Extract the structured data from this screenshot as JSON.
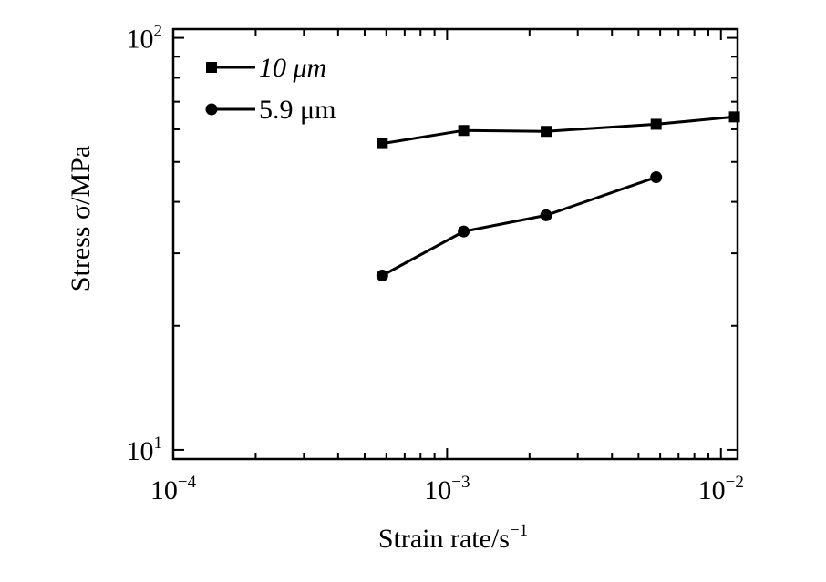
{
  "chart_data": {
    "type": "line",
    "title": "",
    "x_scale": "log",
    "y_scale": "log",
    "xlim": [
      0.0001,
      0.0115
    ],
    "ylim": [
      9.5,
      105
    ],
    "grid": false,
    "legend_position": "top-left",
    "xlabel": {
      "text": "Strain rate/s",
      "sup": "−1"
    },
    "ylabel": "Stress  σ/MPa",
    "x_ticks": [
      {
        "value": 0.0001,
        "base": "10",
        "exp": "−4"
      },
      {
        "value": 0.001,
        "base": "10",
        "exp": "−3"
      },
      {
        "value": 0.01,
        "base": "10",
        "exp": "−2"
      }
    ],
    "y_ticks": [
      {
        "value": 10,
        "base": "10",
        "exp": "1"
      },
      {
        "value": 100,
        "base": "10",
        "exp": "2"
      }
    ],
    "series": [
      {
        "name": "10 μm",
        "marker": "square",
        "points": [
          {
            "x": 0.00058,
            "y": 55.4
          },
          {
            "x": 0.00115,
            "y": 59.6
          },
          {
            "x": 0.0023,
            "y": 59.3
          },
          {
            "x": 0.0058,
            "y": 61.7
          },
          {
            "x": 0.0112,
            "y": 64.3
          }
        ]
      },
      {
        "name": "5.9 μm",
        "marker": "circle",
        "points": [
          {
            "x": 0.00058,
            "y": 26.5
          },
          {
            "x": 0.00115,
            "y": 33.9
          },
          {
            "x": 0.0023,
            "y": 37.1
          },
          {
            "x": 0.0058,
            "y": 45.9
          }
        ]
      }
    ]
  }
}
